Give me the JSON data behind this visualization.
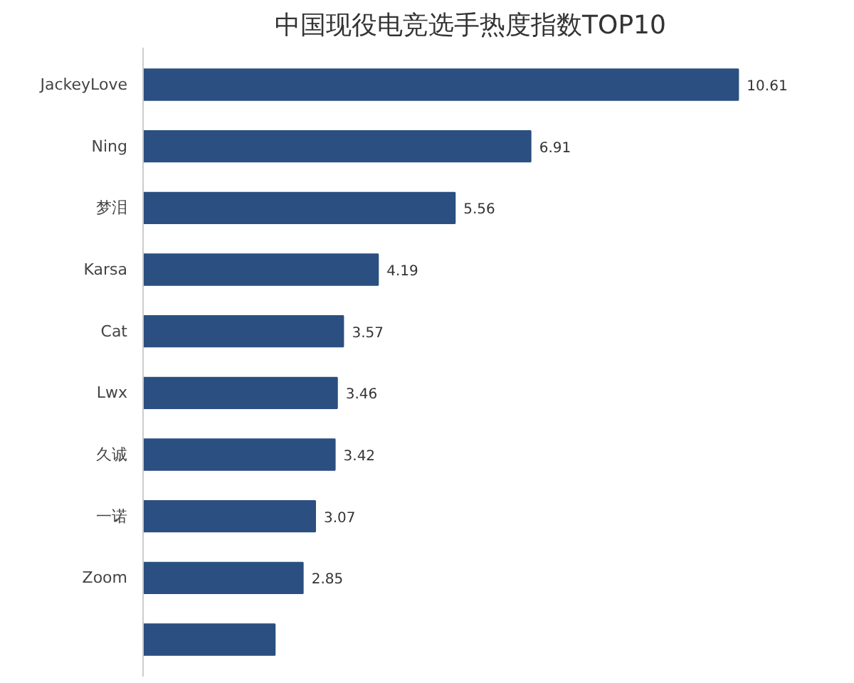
{
  "chart_data": {
    "type": "bar",
    "orientation": "horizontal",
    "title": "中国现役电竞选手热度指数TOP10",
    "categories": [
      "JackeyLove",
      "Ning",
      "梦泪",
      "Karsa",
      "Cat",
      "Lwx",
      "久诚",
      "一诺",
      "Zoom",
      null
    ],
    "values": [
      10.61,
      6.91,
      5.56,
      4.19,
      3.57,
      3.46,
      3.42,
      3.07,
      2.85,
      2.35
    ],
    "value_labels": [
      "10.61",
      "6.91",
      "5.56",
      "4.19",
      "3.57",
      "3.46",
      "3.42",
      "3.07",
      "2.85",
      null
    ],
    "color": "#2b4f80",
    "tick_labels": "y",
    "grid": false
  }
}
